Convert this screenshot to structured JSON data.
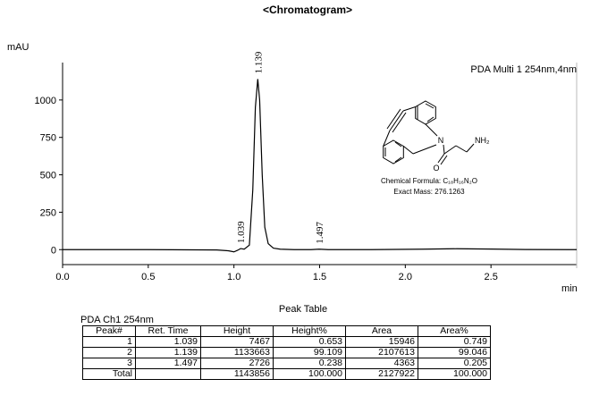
{
  "chart_data": {
    "type": "line",
    "title": "<Chromatogram>",
    "ylabel": "mAU",
    "xlabel": "min",
    "legend_text": "PDA Multi 1 254nm,4nm",
    "x": [
      0,
      0.5,
      0.9,
      0.97,
      1.0,
      1.02,
      1.039,
      1.06,
      1.09,
      1.11,
      1.125,
      1.139,
      1.15,
      1.165,
      1.18,
      1.2,
      1.23,
      1.27,
      1.35,
      1.45,
      1.497,
      1.55,
      1.8,
      2.1,
      2.3,
      2.5,
      2.7,
      3.0
    ],
    "series": [
      {
        "name": "PDA Multi 1 254nm,4nm",
        "color": "#000000",
        "values": [
          0,
          0,
          -2,
          -8,
          -15,
          -5,
          7,
          3,
          30,
          400,
          950,
          1140,
          1000,
          500,
          150,
          40,
          10,
          3,
          0,
          0,
          3,
          0,
          0,
          3,
          6,
          4,
          1,
          0
        ]
      }
    ],
    "annotations": [
      {
        "x": 1.039,
        "text": "1.039"
      },
      {
        "x": 1.139,
        "text": "1.139"
      },
      {
        "x": 1.497,
        "text": "1.497"
      }
    ],
    "xlim": [
      0,
      3
    ],
    "ylim": [
      -100,
      1250
    ],
    "xticks": [
      {
        "value": 0,
        "label": "0.0"
      },
      0.5,
      {
        "value": 1,
        "label": "1.0"
      },
      1.5,
      {
        "value": 2,
        "label": "2.0"
      },
      2.5
    ],
    "yticks": [
      0,
      250,
      500,
      750,
      1000
    ]
  },
  "structure": {
    "atoms": [
      "N",
      "O",
      "NH₂"
    ],
    "formula": "Chemical Formula: C₁₈H₁₆N₂O",
    "mass": "Exact Mass: 276.1263"
  },
  "table": {
    "title": "Peak Table",
    "subtitle": "PDA Ch1 254nm",
    "header": [
      "Peak#",
      "Ret. Time",
      "Height",
      "Height%",
      "Area",
      "Area%"
    ],
    "rows": [
      [
        "1",
        "1.039",
        "7467",
        "0.653",
        "15946",
        "0.749"
      ],
      [
        "2",
        "1.139",
        "1133663",
        "99.109",
        "2107613",
        "99.046"
      ],
      [
        "3",
        "1.497",
        "2726",
        "0.238",
        "4363",
        "0.205"
      ],
      [
        "Total",
        null,
        "1143856",
        "100.000",
        "2127922",
        "100.000"
      ]
    ]
  }
}
